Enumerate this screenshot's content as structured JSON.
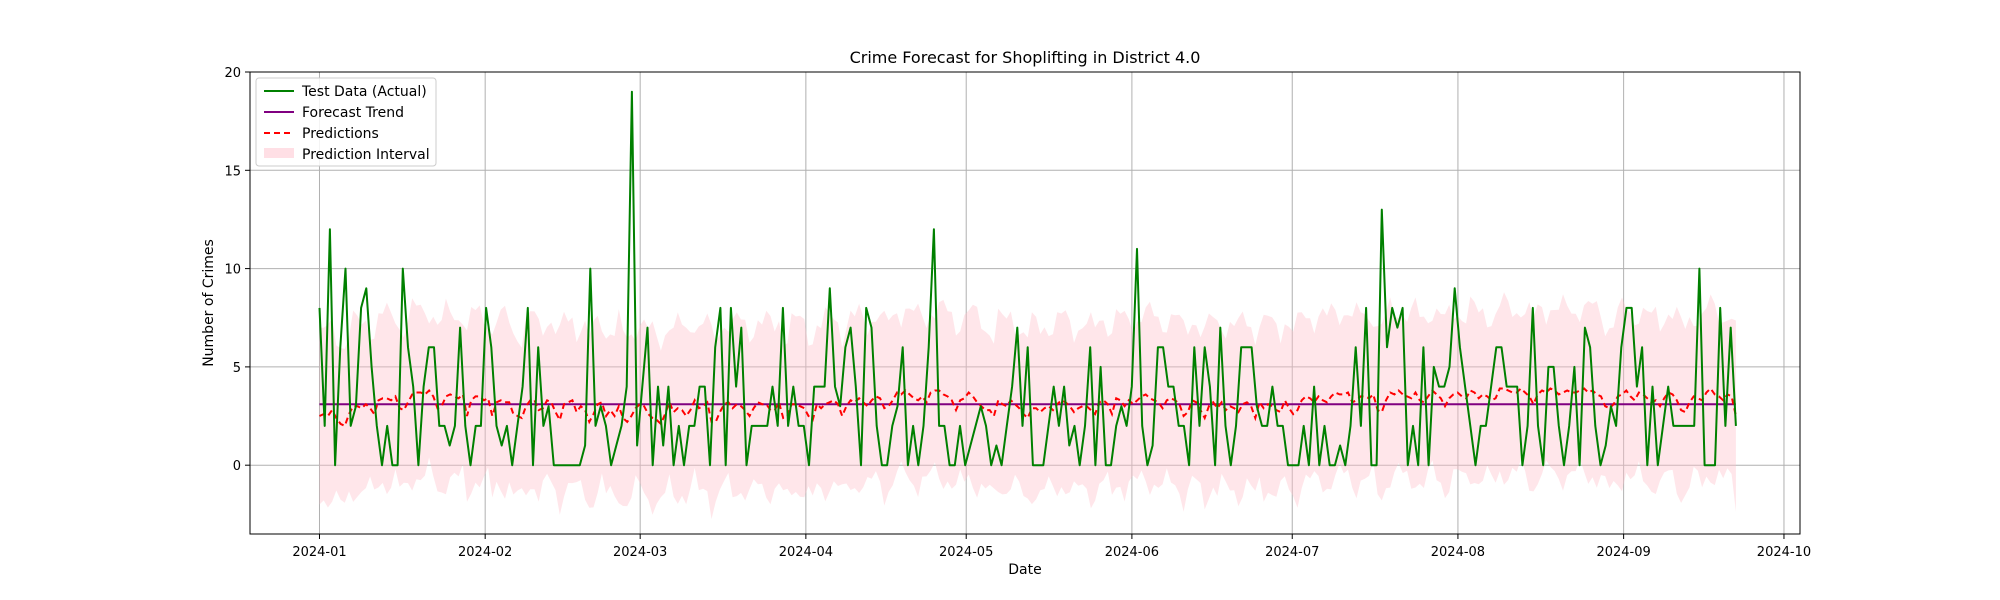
{
  "chart_data": {
    "type": "line",
    "title": "Crime Forecast for Shoplifting in District 4.0",
    "xlabel": "Date",
    "ylabel": "Number of Crimes",
    "x_start": "2024-01-01",
    "x_end": "2024-09-22",
    "xlim": [
      "2023-12-19",
      "2024-10-04"
    ],
    "ylim": [
      -3.5,
      20
    ],
    "xticks": [
      {
        "date": "2024-01-01",
        "label": "2024-01"
      },
      {
        "date": "2024-02-01",
        "label": "2024-02"
      },
      {
        "date": "2024-03-01",
        "label": "2024-03"
      },
      {
        "date": "2024-04-01",
        "label": "2024-04"
      },
      {
        "date": "2024-05-01",
        "label": "2024-05"
      },
      {
        "date": "2024-06-01",
        "label": "2024-06"
      },
      {
        "date": "2024-07-01",
        "label": "2024-07"
      },
      {
        "date": "2024-08-01",
        "label": "2024-08"
      },
      {
        "date": "2024-09-01",
        "label": "2024-09"
      },
      {
        "date": "2024-10-01",
        "label": "2024-10"
      }
    ],
    "yticks": [
      0,
      5,
      10,
      15,
      20
    ],
    "grid": true,
    "legend_position": "top-left",
    "series": [
      {
        "name": "Test Data (Actual)",
        "color": "#008000",
        "style": "solid",
        "values": [
          8,
          2,
          12,
          0,
          6,
          10,
          2,
          3,
          8,
          9,
          5,
          2,
          0,
          2,
          0,
          0,
          10,
          6,
          4,
          0,
          4,
          6,
          6,
          2,
          2,
          1,
          2,
          7,
          2,
          0,
          2,
          2,
          8,
          6,
          2,
          1,
          2,
          0,
          2,
          4,
          8,
          0,
          6,
          2,
          3,
          0,
          0,
          0,
          0,
          0,
          0,
          1,
          10,
          2,
          3,
          2,
          0,
          1,
          2,
          4,
          19,
          1,
          4,
          7,
          0,
          4,
          1,
          4,
          0,
          2,
          0,
          2,
          2,
          4,
          4,
          0,
          6,
          8,
          0,
          8,
          4,
          7,
          0,
          2,
          2,
          2,
          2,
          4,
          2,
          8,
          2,
          4,
          2,
          2,
          0,
          4,
          4,
          4,
          9,
          4,
          3,
          6,
          7,
          4,
          0,
          8,
          7,
          2,
          0,
          0,
          2,
          3,
          6,
          0,
          2,
          0,
          2,
          6,
          12,
          2,
          2,
          0,
          0,
          2,
          0,
          1,
          2,
          3,
          2,
          0,
          1,
          0,
          2,
          4,
          7,
          2,
          6,
          0,
          0,
          0,
          2,
          4,
          2,
          4,
          1,
          2,
          0,
          2,
          6,
          0,
          5,
          0,
          0,
          2,
          3,
          2,
          4,
          11,
          2,
          0,
          1,
          6,
          6,
          4,
          4,
          2,
          2,
          0,
          6,
          2,
          6,
          4,
          0,
          7,
          2,
          0,
          2,
          6,
          6,
          6,
          3,
          2,
          2,
          4,
          2,
          2,
          0,
          0,
          0,
          2,
          0,
          4,
          0,
          2,
          0,
          0,
          1,
          0,
          2,
          6,
          2,
          8,
          0,
          0,
          13,
          6,
          8,
          7,
          8,
          0,
          2,
          0,
          6,
          0,
          5,
          4,
          4,
          5,
          9,
          6,
          4,
          2,
          0,
          2,
          2,
          4,
          6,
          6,
          4,
          4,
          4,
          0,
          2,
          8,
          2,
          0,
          5,
          5,
          2,
          0,
          2,
          5,
          0,
          7,
          6,
          2,
          0,
          1,
          3,
          2,
          6,
          8,
          8,
          4,
          6,
          0,
          4,
          0,
          2,
          4,
          2,
          2,
          2,
          2,
          2,
          10,
          0,
          0,
          0,
          8,
          2,
          7,
          2
        ]
      },
      {
        "name": "Forecast Trend",
        "color": "#800080",
        "style": "solid",
        "values": [
          3.1
        ]
      },
      {
        "name": "Predictions",
        "color": "#ff0000",
        "style": "dashed",
        "values": [
          2.5,
          2.6,
          2.5,
          2.8,
          2.4,
          2.1,
          2.0,
          2.6,
          3.0,
          3.0,
          2.9,
          3.1,
          2.9,
          2.6,
          3.3,
          3.4,
          3.4,
          3.3,
          3.5,
          2.9,
          2.8,
          3.2,
          3.6,
          3.7,
          3.7,
          3.6,
          3.8,
          3.5,
          2.9,
          3.0,
          3.5,
          3.6,
          3.5,
          3.4,
          3.6,
          2.5,
          3.3,
          3.5,
          3.5,
          3.3,
          3.4,
          2.5,
          3.2,
          3.3,
          3.2,
          3.2,
          2.6,
          2.5,
          2.4,
          3.0,
          3.3,
          3.3,
          2.8,
          2.9,
          3.3,
          3.2,
          2.7,
          2.3,
          3.1,
          3.2,
          3.3,
          2.7,
          3.0,
          2.8,
          2.2,
          2.6,
          3.1,
          3.2,
          2.5,
          2.8,
          2.5,
          3.0,
          2.4,
          2.2,
          2.5,
          2.9,
          3.1,
          3.0,
          2.6,
          2.4,
          2.3,
          2.1,
          2.6,
          3.2,
          2.7,
          2.9,
          2.8,
          2.5,
          2.8,
          3.3,
          2.9,
          3.0,
          3.2,
          2.2,
          2.2,
          2.7,
          3.1,
          3.2,
          2.9,
          3.1,
          3.0,
          2.8,
          2.5,
          2.9,
          3.2,
          3.1,
          3.1,
          2.8,
          2.8,
          3.2,
          2.4,
          2.5,
          3.1,
          3.1,
          3.0,
          2.9,
          2.5,
          2.3,
          3.1,
          2.9,
          3.1,
          3.2,
          3.3,
          3.1,
          2.5,
          3.0,
          3.3,
          3.2,
          3.4,
          3.2,
          3.0,
          3.3,
          3.5,
          3.4,
          2.9,
          3.0,
          3.3,
          3.7,
          3.6,
          3.8,
          3.6,
          3.4,
          3.3,
          3.5,
          3.2,
          3.7,
          3.8,
          3.8,
          3.6,
          3.5,
          3.3,
          2.8,
          3.3,
          3.4,
          3.7,
          3.5,
          3.2,
          3.0,
          2.8,
          2.8,
          2.5,
          3.3,
          3.1,
          3.0,
          3.3,
          3.1,
          2.9,
          2.6,
          2.4,
          2.9,
          2.9,
          2.7,
          2.9,
          3.0,
          2.8,
          3.1,
          3.3,
          3.2,
          3.0,
          2.7,
          2.9,
          3.0,
          3.0,
          2.8,
          2.6,
          3.2,
          3.3,
          3.1,
          2.6,
          3.4,
          3.3,
          3.0,
          3.3,
          3.1,
          3.3,
          3.5,
          3.6,
          3.4,
          3.3,
          3.2,
          2.9,
          3.3,
          3.4,
          3.3,
          3.1,
          2.5,
          2.7,
          3.3,
          3.2,
          2.8,
          2.4,
          3.0,
          3.2,
          2.9,
          3.2,
          2.8,
          3.0,
          2.9,
          2.7,
          3.1,
          3.2,
          3.0,
          2.4,
          3.2,
          2.9,
          3.1,
          3.0,
          2.8,
          2.7,
          3.3,
          2.9,
          2.6,
          2.8,
          3.3,
          3.5,
          3.4,
          3.2,
          3.5,
          3.3,
          3.2,
          3.5,
          3.7,
          3.6,
          3.6,
          3.7,
          3.2,
          3.3,
          3.5,
          3.5,
          3.4,
          3.6,
          2.8,
          2.7,
          3.3,
          3.7,
          3.6,
          3.8,
          3.6,
          3.5,
          3.4,
          3.7,
          3.3,
          3.2,
          3.5,
          3.8,
          3.6,
          3.4,
          3.0,
          3.4,
          3.6,
          3.7,
          3.5,
          3.4,
          3.8,
          3.7,
          3.4,
          3.6,
          3.5,
          3.3,
          3.4,
          3.9,
          3.9,
          3.8,
          3.7,
          3.7,
          3.9,
          3.7,
          3.5,
          3.1,
          3.6,
          3.8,
          3.7,
          3.9,
          3.8,
          3.6,
          3.7,
          3.8,
          3.7,
          3.7,
          3.8,
          3.9,
          3.7,
          3.8,
          3.6,
          3.5,
          3.0,
          2.9,
          3.1,
          3.5,
          3.6,
          3.8,
          3.5,
          3.3,
          3.7,
          3.6,
          3.4,
          3.2,
          3.3,
          3.0,
          3.4,
          3.7,
          3.6,
          3.3,
          2.8,
          2.7,
          3.2,
          3.5,
          3.4,
          3.3,
          3.7,
          3.9,
          3.6,
          3.5,
          3.3,
          3.6,
          3.5,
          2.5
        ]
      },
      {
        "name": "Prediction Interval",
        "color": "#ffc0cb",
        "style": "band",
        "band_halfwidth": 4.2
      }
    ]
  }
}
